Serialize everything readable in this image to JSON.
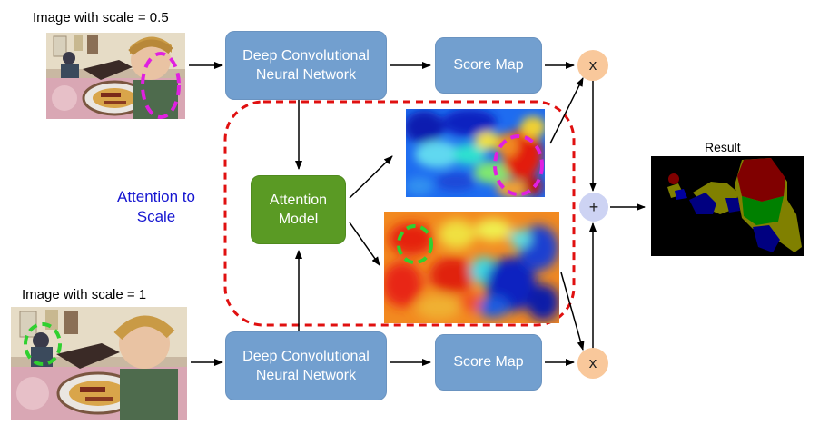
{
  "labels": {
    "top_image": "Image with scale = 0.5",
    "bottom_image": "Image with scale = 1",
    "result": "Result",
    "attention_to_scale_line1": "Attention to",
    "attention_to_scale_line2": "Scale"
  },
  "boxes": {
    "cnn_line1": "Deep Convolutional",
    "cnn_line2": "Neural Network",
    "score_map": "Score Map",
    "attention_line1": "Attention",
    "attention_line2": "Model"
  },
  "operators": {
    "multiply": "x",
    "plus": "+"
  },
  "colors": {
    "box_blue": "#729fcf",
    "attention_green": "#5a9a24",
    "multiply_circle": "#f9c89b",
    "plus_circle": "#cdd3f3",
    "dashed_region": "#e01010",
    "attention_text": "#1515d0",
    "magenta_marker": "#e020e0",
    "green_marker": "#30d030"
  }
}
